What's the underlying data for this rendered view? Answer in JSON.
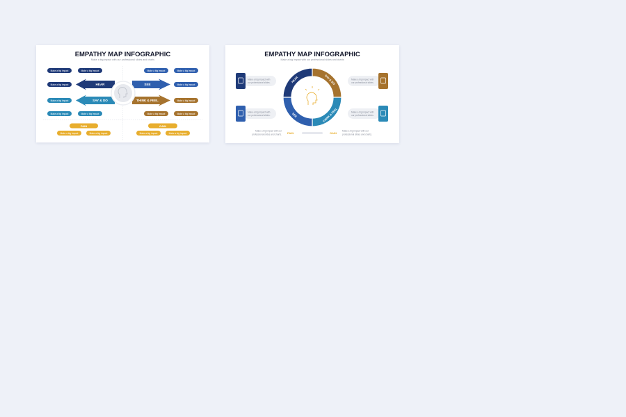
{
  "colors": {
    "navy": "#1f3a78",
    "blue": "#2f5fae",
    "teal": "#2b8ab7",
    "brown": "#a6732e",
    "gold": "#e8ae2e",
    "background": "#eef1f8"
  },
  "slide1": {
    "title": "EMPATHY MAP INFOGRAPHIC",
    "subtitle": "Make a big impact with our professional slides and charts",
    "pill_text": "Make a big impact",
    "arrows": {
      "hear": "HEAR",
      "see": "SEE",
      "say_do": "SAY & DO",
      "think_feel": "THINK & FEEL"
    },
    "center_icon": "head-icon",
    "pain": "PAIN",
    "gain": "GAIN"
  },
  "slide2": {
    "title": "EMPATHY MAP INFOGRAPHIC",
    "subtitle": "Make a big impact with our professional slides and charts",
    "segments": {
      "hear": "HEAR",
      "say_do": "SAY & DO",
      "see": "SEE",
      "think_feel": "THINK & FEEL"
    },
    "bubble_line1": "Make a big impact with",
    "bubble_line2": "our professional slides.",
    "bottom_line1": "Make a big impact with our",
    "bottom_line2": "professional slides and charts.",
    "pain": "PAIN",
    "gain": "GAIN",
    "icons": [
      "audience-icon",
      "user-icon",
      "team-icon",
      "presentation-icon",
      "head-idea-icon"
    ]
  }
}
